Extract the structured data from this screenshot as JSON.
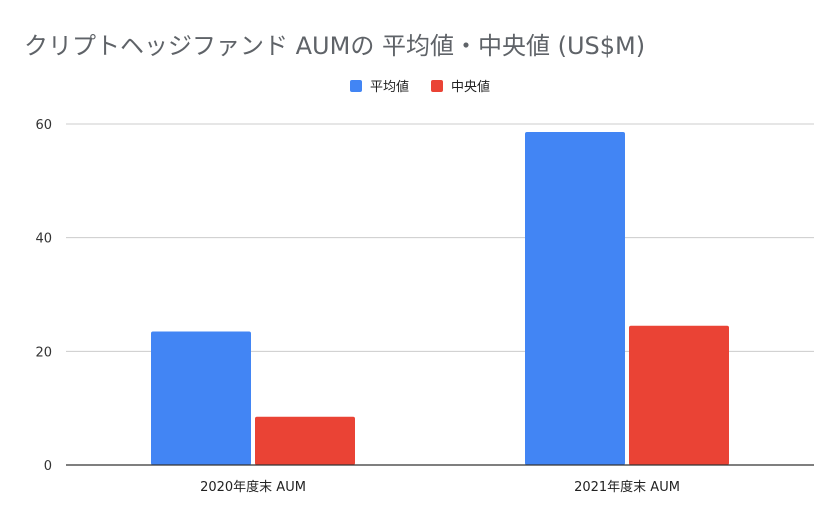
{
  "chart_data": {
    "type": "bar",
    "title": "クリプトヘッジファンド AUMの 平均値・中央値 (US$M)",
    "categories": [
      "2020年度末 AUM",
      "2021年度末 AUM"
    ],
    "series": [
      {
        "name": "平均値",
        "color": "#4285f4",
        "values": [
          23.5,
          58.6
        ]
      },
      {
        "name": "中央値",
        "color": "#ea4335",
        "values": [
          8.5,
          24.5
        ]
      }
    ],
    "ylim": [
      0,
      60
    ],
    "yticks": [
      0,
      20,
      40,
      60
    ],
    "grid": true,
    "legend_position": "top-center"
  }
}
